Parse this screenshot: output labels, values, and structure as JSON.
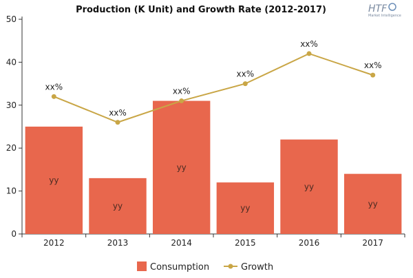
{
  "chart_data": {
    "type": "bar",
    "title": "Production (K Unit) and Growth Rate (2012-2017)",
    "categories": [
      "2012",
      "2013",
      "2014",
      "2015",
      "2016",
      "2017"
    ],
    "ylim": [
      0,
      50
    ],
    "yticks": [
      "0",
      "10",
      "20",
      "30",
      "40",
      "50"
    ],
    "grid": false,
    "legend_position": "bottom",
    "series": [
      {
        "name": "Consumption",
        "type": "bar",
        "color": "#e8674d",
        "values": [
          25,
          13,
          31,
          12,
          22,
          14
        ],
        "data_labels": [
          "yy",
          "yy",
          "yy",
          "yy",
          "yy",
          "yy"
        ]
      },
      {
        "name": "Growth",
        "type": "line",
        "color": "#c9a646",
        "values": [
          32,
          26,
          31,
          35,
          42,
          37
        ],
        "data_labels": [
          "xx%",
          "xx%",
          "xx%",
          "xx%",
          "xx%",
          "xx%"
        ]
      }
    ]
  },
  "logo": {
    "text": "HTF",
    "subtext": "Market Intelligence"
  }
}
